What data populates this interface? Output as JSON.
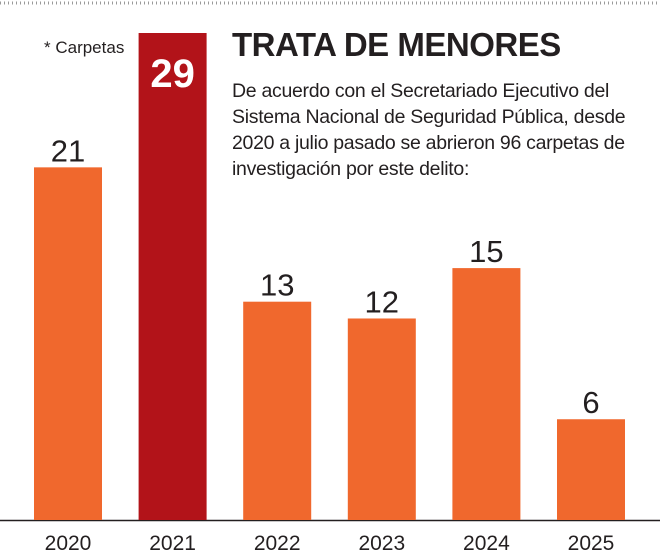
{
  "header": {
    "title": "TRATA DE MENORES",
    "description": "De acuerdo con el Secretariado Ejecutivo del Sistema Nacional de Seguridad Pública, desde 2020 a julio pasado se abrieron 96 carpetas de investigación por este delito:",
    "unit_note": "* Carpetas"
  },
  "colors": {
    "bar": "#f0682d",
    "highlight": "#b21319",
    "text": "#231f20",
    "axis": "#231f20",
    "highlight_label": "#ffffff"
  },
  "chart_data": {
    "type": "bar",
    "title": "TRATA DE MENORES",
    "categories": [
      "2020",
      "2021",
      "2022",
      "2023",
      "2024",
      "2025"
    ],
    "values": [
      21,
      29,
      13,
      12,
      15,
      6
    ],
    "highlight_category": "2021",
    "ylim": [
      0,
      29
    ],
    "grid": false,
    "legend": "none"
  }
}
